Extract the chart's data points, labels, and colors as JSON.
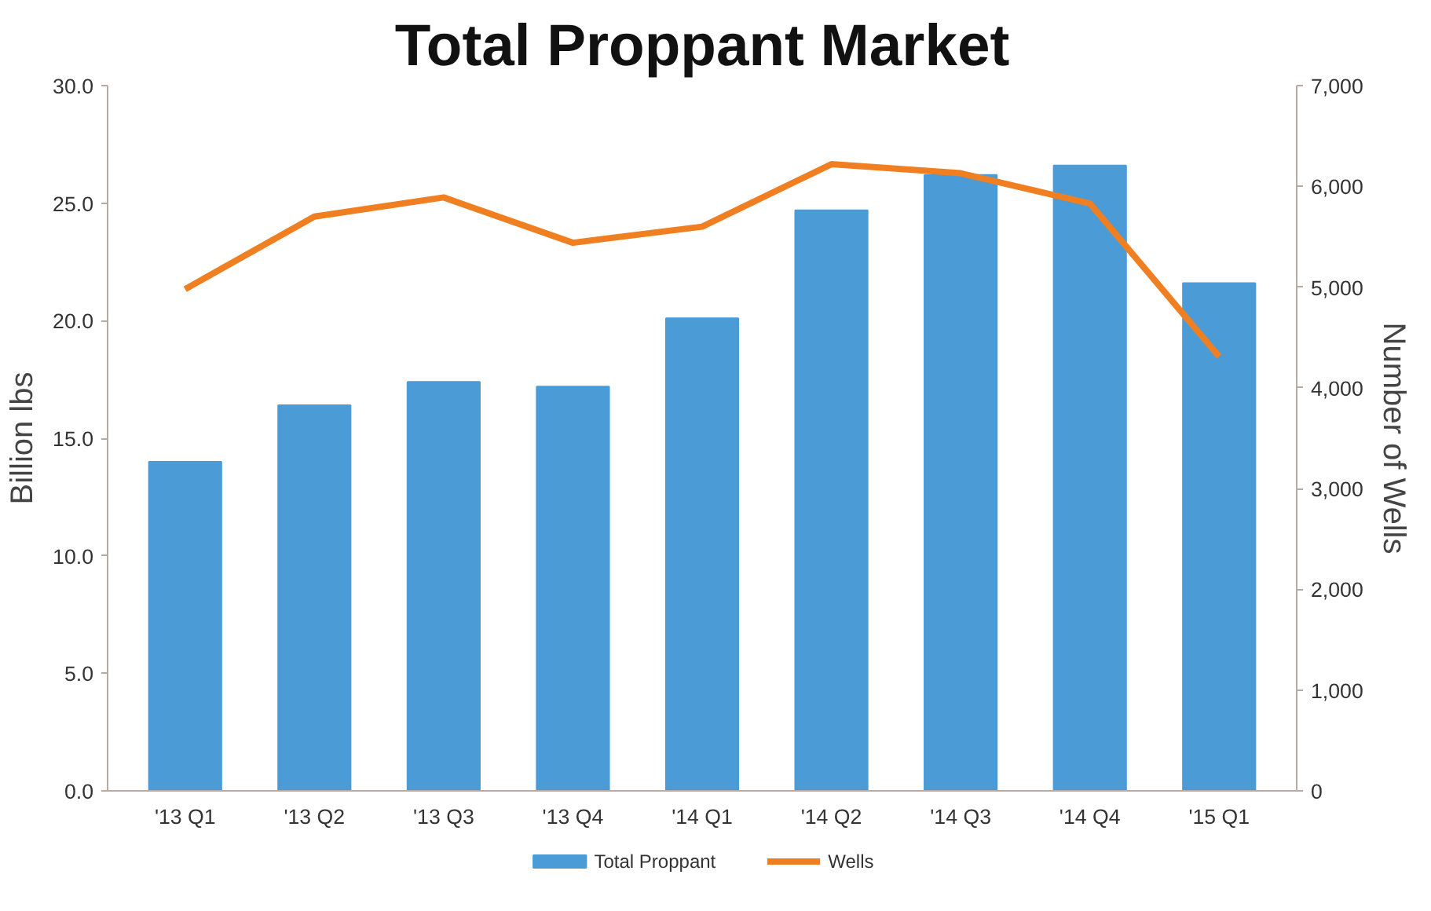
{
  "chart_data": {
    "type": "bar",
    "title": "Total Proppant Market",
    "ylabel": "Billion lbs",
    "y2label": "Number of Wells",
    "categories": [
      "'13 Q1",
      "'13 Q2",
      "'13 Q3",
      "'13 Q4",
      "'14 Q1",
      "'14 Q2",
      "'14 Q3",
      "'14 Q4",
      "'15 Q1"
    ],
    "series": [
      {
        "name": "Total Proppant",
        "color": "#4a9bd6",
        "values": [
          14.0,
          16.4,
          17.4,
          17.2,
          20.1,
          24.7,
          26.2,
          26.6,
          21.6
        ]
      },
      {
        "name": "Wells",
        "type": "line",
        "axis": "y2",
        "color": "#f07f22",
        "values": [
          4980,
          5700,
          5890,
          5440,
          5600,
          6220,
          6130,
          5830,
          4310
        ]
      }
    ],
    "ylim": [
      0,
      30
    ],
    "yticks": [
      {
        "value": 0,
        "label": "0.0"
      },
      {
        "value": 5,
        "label": "5.0"
      },
      {
        "value": 10,
        "label": "10.0"
      },
      {
        "value": 15,
        "label": "15.0"
      },
      {
        "value": 20,
        "label": "20.0"
      },
      {
        "value": 25,
        "label": "25.0"
      },
      {
        "value": 30,
        "label": "30.0"
      }
    ],
    "y2lim": [
      0,
      7000
    ],
    "y2ticks": [
      0,
      {
        "value": 1000,
        "label": "1,000"
      },
      {
        "value": 2000,
        "label": "2,000"
      },
      {
        "value": 3000,
        "label": "3,000"
      },
      {
        "value": 4000,
        "label": "4,000"
      },
      {
        "value": 5000,
        "label": "5,000"
      },
      {
        "value": 6000,
        "label": "6,000"
      },
      {
        "value": 7000,
        "label": "7,000"
      }
    ],
    "grid": false,
    "legend": "bottom",
    "marker": "none",
    "line_style": "solid"
  }
}
